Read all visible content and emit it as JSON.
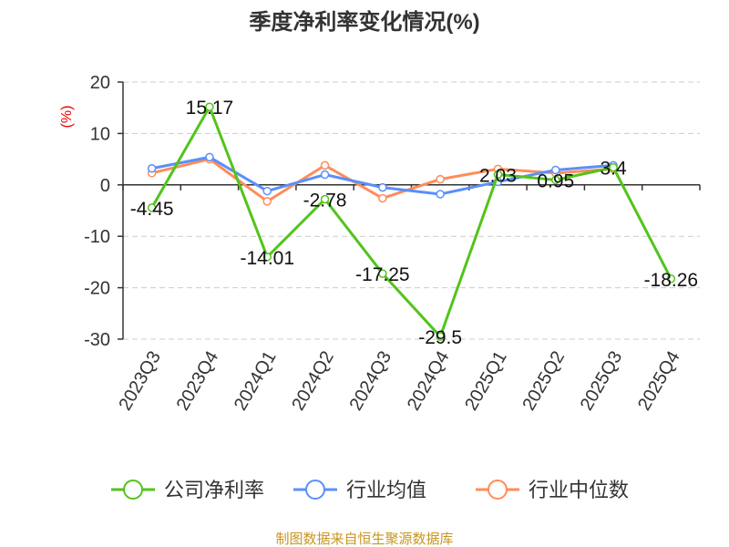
{
  "chart_data": {
    "type": "line",
    "title": "季度净利率变化情况(%)",
    "ylabel": "(%)",
    "xlabel": "",
    "ylim": [
      -30,
      20
    ],
    "yticks": [
      20,
      10,
      0,
      -10,
      -20,
      -30
    ],
    "grid": true,
    "legend_position": "bottom",
    "categories": [
      "2023Q3",
      "2023Q4",
      "2024Q1",
      "2024Q2",
      "2024Q3",
      "2024Q4",
      "2025Q1",
      "2025Q2",
      "2025Q3",
      "2025Q4"
    ],
    "series": [
      {
        "name": "公司净利率",
        "color": "#52c41a",
        "values": [
          -4.45,
          15.17,
          -14.01,
          -2.78,
          -17.25,
          -29.5,
          2.03,
          0.95,
          3.4,
          -18.26
        ],
        "labels": [
          "-4.45",
          "15.17",
          "-14.01",
          "-2.78",
          "-17.25",
          "-29.5",
          "2.03",
          "0.95",
          "3.4",
          "-18.26"
        ]
      },
      {
        "name": "行业均值",
        "color": "#5b8ff9",
        "values": [
          3.2,
          5.4,
          -1.2,
          2.0,
          -0.5,
          -1.8,
          0.6,
          2.9,
          3.8,
          null
        ]
      },
      {
        "name": "行业中位数",
        "color": "#ff8c5a",
        "values": [
          2.3,
          5.0,
          -3.2,
          3.8,
          -2.6,
          1.1,
          3.1,
          2.3,
          3.1,
          null
        ]
      }
    ]
  },
  "footer": "制图数据来自恒生聚源数据库"
}
